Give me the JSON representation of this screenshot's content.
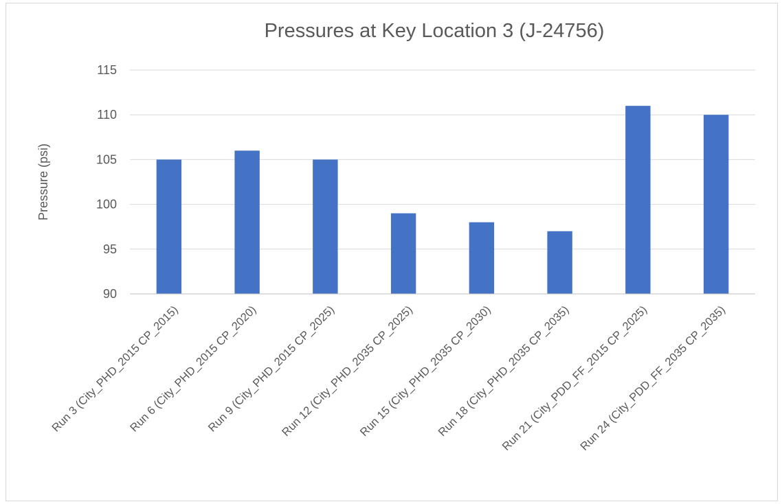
{
  "chart_data": {
    "type": "bar",
    "title": "Pressures at Key Location 3 (J-24756)",
    "xlabel": "",
    "ylabel": "Pressure (psi)",
    "ylim": [
      90,
      115
    ],
    "yticks": [
      90,
      95,
      100,
      105,
      110,
      115
    ],
    "grid": true,
    "legend": "none",
    "bar_color": "#4472C4",
    "categories": [
      "Run 3 (City_PHD_2015 CP_2015)",
      "Run 6 (City_PHD_2015 CP_2020)",
      "Run 9 (City_PHD_2015 CP_2025)",
      "Run 12 (City_PHD_2035 CP_2025)",
      "Run 15 (City_PHD_2035 CP_2030)",
      "Run 18 (City_PHD_2035 CP_2035)",
      "Run 21 (City_PDD_FF_2015 CP_2025)",
      "Run 24 (City_PDD_FF_2035 CP_2035)"
    ],
    "values": [
      105,
      106,
      105,
      99,
      98,
      97,
      111,
      110
    ]
  }
}
